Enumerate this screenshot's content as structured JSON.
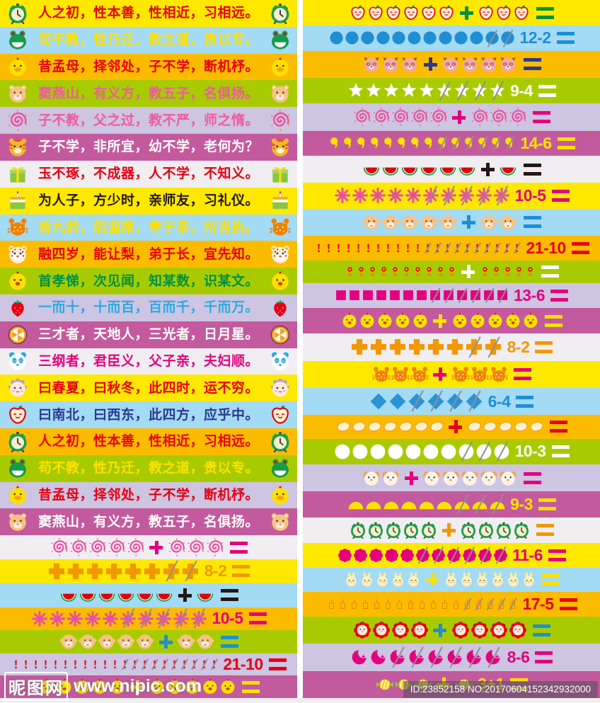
{
  "watermarks": {
    "nipic_logo": "昵图网",
    "nipic_url": "www.nipic.com",
    "id_text": "ID:23852158 NO:20170604152342932000"
  },
  "footer_strip_color": "#f0eef1",
  "columns": {
    "left": {
      "rows": [
        {
          "type": "text",
          "bg": "#ffe800",
          "icon": "alarm-clock-icon",
          "text": "人之初，性本善，性相近，习相远。",
          "text_color": "#e60012"
        },
        {
          "type": "text",
          "bg": "#a3daf4",
          "icon": "frog-icon",
          "text": "苟不教，性乃迁，教之道，贵以专。",
          "text_color": "#ffe100"
        },
        {
          "type": "text",
          "bg": "#fbbc00",
          "icon": "duck-icon",
          "text": "昔孟母，择邻处，子不学，断机杼。",
          "text_color": "#e60012"
        },
        {
          "type": "text",
          "bg": "#a8cb00",
          "icon": "bear-icon",
          "text": "窦燕山，有义方，教五子，名俱扬。",
          "text_color": "#ee5ba0"
        },
        {
          "type": "text",
          "bg": "#cdc5e2",
          "icon": "swirl-sun-icon",
          "text": "子不教，父之过，教不严，师之惰。",
          "text_color": "#ee5ba0"
        },
        {
          "type": "text",
          "bg": "#c45a9e",
          "icon": "tiger-icon",
          "text": "子不学，非所宜，幼不学，老何为？",
          "text_color": "#ffffff"
        },
        {
          "type": "text",
          "bg": "#f0eef1",
          "icon": "gift-icon",
          "text": "玉不琢，不成器，人不学，不知义。",
          "text_color": "#e60012"
        },
        {
          "type": "text",
          "bg": "#ffe800",
          "icon": "cake-icon",
          "text": "为人子，方少时，亲师友，习礼仪。",
          "text_color": "#231815"
        },
        {
          "type": "text",
          "bg": "#a3daf4",
          "icon": "crab-icon",
          "text": "香九龄，能温席，孝于亲，所当执。",
          "text_color": "#ffe100"
        },
        {
          "type": "text",
          "bg": "#fbbc00",
          "icon": "leopard-icon",
          "text": "融四岁，能让梨，弟于长，宜先知。",
          "text_color": "#e60012"
        },
        {
          "type": "text",
          "bg": "#a8cb00",
          "icon": "chick-face-icon",
          "text": "首孝悌，次见闻，知某数，识某文。",
          "text_color": "#009140"
        },
        {
          "type": "text",
          "bg": "#cdc5e2",
          "icon": "strawberry-icon",
          "text": "一而十，十而百，百而千，千而万。",
          "text_color": "#29abe2"
        },
        {
          "type": "text",
          "bg": "#c45a9e",
          "icon": "orange-slice-icon",
          "text": "三才者，天地人，三光者，日月星。",
          "text_color": "#ffffff"
        },
        {
          "type": "text",
          "bg": "#f0eef1",
          "icon": "panda-icon",
          "text": "三纲者，君臣义，父子亲，夫妇顺。",
          "text_color": "#e4007f"
        },
        {
          "type": "text",
          "bg": "#ffe800",
          "icon": "sheep-icon",
          "text": "曰春夏，曰秋冬，此四时，运不穷。",
          "text_color": "#e60012"
        },
        {
          "type": "text",
          "bg": "#a3daf4",
          "icon": "apple-icon",
          "text": "曰南北，曰西东，此四方，应乎中。",
          "text_color": "#2b3990"
        },
        {
          "type": "text",
          "bg": "#fbbc00",
          "icon": "alarm-clock-icon",
          "text": "人之初，性本善，性相近，习相远。",
          "text_color": "#e60012"
        },
        {
          "type": "text",
          "bg": "#a8cb00",
          "icon": "frog-icon",
          "text": "苟不教，性乃迁，教之道，贵以专。",
          "text_color": "#ffe100"
        },
        {
          "type": "text",
          "bg": "#cdc5e2",
          "icon": "duck-icon",
          "text": "昔孟母，择邻处，子不学，断机杼。",
          "text_color": "#e60012"
        },
        {
          "type": "text",
          "bg": "#c45a9e",
          "icon": "bear-icon",
          "text": "窦燕山，有义方，教五子，名俱扬。",
          "text_color": "#ffffff"
        },
        {
          "type": "add",
          "bg": "#f0eef1",
          "icon": "swirl-icon",
          "icon_color": "#ed4fa0",
          "a": 5,
          "b": 3,
          "accent": "#e4007f"
        },
        {
          "type": "sub",
          "bg": "#ffe800",
          "icon": "cross-icon",
          "icon_color": "#f39800",
          "total": 8,
          "crossed": 2,
          "label": "8-2",
          "accent": "#f39800"
        },
        {
          "type": "add",
          "bg": "#a3daf4",
          "icon": "watermelon-icon",
          "a": 6,
          "b": 1,
          "accent": "#231815"
        },
        {
          "type": "sub",
          "bg": "#fbbc00",
          "icon": "asterisk-icon",
          "icon_color": "#e8509e",
          "total": 10,
          "crossed": 5,
          "label": "10-5",
          "accent": "#e4007f"
        },
        {
          "type": "add",
          "bg": "#a8cb00",
          "icon": "monkey-icon",
          "a": 5,
          "b": 2,
          "accent": "#1e8fd5"
        },
        {
          "type": "sub",
          "bg": "#cdc5e2",
          "icon": "exclamation-icon",
          "icon_color": "#e60012",
          "total": 21,
          "crossed": 10,
          "label": "21-10",
          "accent": "#e60012"
        },
        {
          "type": "add",
          "bg": "#c45a9e",
          "icon": "chick-face-icon",
          "a": 5,
          "b": 5,
          "accent": "#ffe100"
        }
      ]
    },
    "right": {
      "rows": [
        {
          "type": "add",
          "bg": "#ffe800",
          "icon": "apple-icon",
          "a": 6,
          "b": 3,
          "accent": "#009140"
        },
        {
          "type": "sub",
          "bg": "#a3daf4",
          "icon": "circle-icon",
          "icon_color": "#1e8fd5",
          "total": 12,
          "crossed": 2,
          "label": "12-2",
          "accent": "#1e8fd5"
        },
        {
          "type": "add",
          "bg": "#fbbc00",
          "icon": "raccoon-icon",
          "a": 3,
          "b": 4,
          "accent": "#2b3990"
        },
        {
          "type": "sub",
          "bg": "#a8cb00",
          "icon": "star-icon",
          "icon_color": "#ffffff",
          "total": 9,
          "crossed": 4,
          "label": "9-4",
          "accent": "#ffffff"
        },
        {
          "type": "add",
          "bg": "#cdc5e2",
          "icon": "swirl-icon",
          "icon_color": "#ed4fa0",
          "a": 5,
          "b": 3,
          "accent": "#e4007f"
        },
        {
          "type": "sub",
          "bg": "#c45a9e",
          "icon": "balloon-comma-icon",
          "icon_color": "#ffe100",
          "total": 14,
          "crossed": 6,
          "label": "14-6",
          "accent": "#ffe100"
        },
        {
          "type": "add",
          "bg": "#f0eef1",
          "icon": "watermelon-icon",
          "a": 6,
          "b": 1,
          "accent": "#231815"
        },
        {
          "type": "sub",
          "bg": "#ffe800",
          "icon": "asterisk-icon",
          "icon_color": "#e8509e",
          "total": 10,
          "crossed": 5,
          "label": "10-5",
          "accent": "#e4007f"
        },
        {
          "type": "add",
          "bg": "#a3daf4",
          "icon": "monkey-icon",
          "a": 5,
          "b": 2,
          "accent": "#1e8fd5"
        },
        {
          "type": "sub",
          "bg": "#fbbc00",
          "icon": "exclamation-icon",
          "icon_color": "#e60012",
          "total": 21,
          "crossed": 10,
          "label": "21-10",
          "accent": "#e60012"
        },
        {
          "type": "add",
          "bg": "#a8cb00",
          "icon": "flower-pot-icon",
          "a": 10,
          "b": 5,
          "accent": "#ffffff"
        },
        {
          "type": "sub",
          "bg": "#cdc5e2",
          "icon": "square-icon",
          "icon_color": "#e4007f",
          "total": 13,
          "crossed": 6,
          "label": "13-6",
          "accent": "#e4007f"
        },
        {
          "type": "add",
          "bg": "#c45a9e",
          "icon": "chick-face-icon",
          "a": 5,
          "b": 5,
          "accent": "#ffe100"
        },
        {
          "type": "sub",
          "bg": "#f0eef1",
          "icon": "cross-icon",
          "icon_color": "#f39800",
          "total": 8,
          "crossed": 2,
          "label": "8-2",
          "accent": "#f39800"
        },
        {
          "type": "add",
          "bg": "#ffe800",
          "icon": "crab-icon",
          "a": 3,
          "b": 3,
          "accent": "#e4007f"
        },
        {
          "type": "sub",
          "bg": "#a3daf4",
          "icon": "diamond-icon",
          "icon_color": "#2a93d5",
          "total": 6,
          "crossed": 4,
          "label": "6-4",
          "accent": "#1e8fd5"
        },
        {
          "type": "add",
          "bg": "#fbbc00",
          "icon": "egg-icon",
          "a": 7,
          "b": 5,
          "accent": "#e60012"
        },
        {
          "type": "sub",
          "bg": "#a8cb00",
          "icon": "white-circle-icon",
          "icon_color": "#ffffff",
          "total": 10,
          "crossed": 3,
          "label": "10-3",
          "accent": "#ffffff"
        },
        {
          "type": "add",
          "bg": "#cdc5e2",
          "icon": "dog-icon",
          "a": 2,
          "b": 5,
          "accent": "#e4007f"
        },
        {
          "type": "sub",
          "bg": "#c45a9e",
          "icon": "half-circle-icon",
          "icon_color": "#ffe100",
          "total": 9,
          "crossed": 3,
          "label": "9-3",
          "accent": "#ffe100"
        },
        {
          "type": "add",
          "bg": "#f0eef1",
          "icon": "alarm-clock-icon",
          "a": 5,
          "b": 4,
          "accent": "#f39800"
        },
        {
          "type": "sub",
          "bg": "#ffe800",
          "icon": "flower-icon",
          "icon_color": "#e4007f",
          "total": 11,
          "crossed": 6,
          "label": "11-6",
          "accent": "#e4007f"
        },
        {
          "type": "add",
          "bg": "#a3daf4",
          "icon": "rabbit-icon",
          "a": 5,
          "b": 6,
          "accent": "#ffe100"
        },
        {
          "type": "sub",
          "bg": "#fbbc00",
          "icon": "candle-icon",
          "icon_color": "#f08300",
          "total": 17,
          "crossed": 5,
          "label": "17-5",
          "accent": "#e60012"
        },
        {
          "type": "add",
          "bg": "#a8cb00",
          "icon": "flower-baby-icon",
          "a": 4,
          "b": 4,
          "accent": "#1e8fd5"
        },
        {
          "type": "sub",
          "bg": "#cdc5e2",
          "icon": "crescent-icon",
          "icon_color": "#e4007f",
          "total": 8,
          "crossed": 6,
          "label": "8-6",
          "accent": "#e4007f"
        },
        {
          "type": "add",
          "bg": "#c45a9e",
          "icon": "candy-icon",
          "a": 3,
          "b": 1,
          "label": "3+1",
          "accent": "#ffe100"
        }
      ]
    }
  }
}
